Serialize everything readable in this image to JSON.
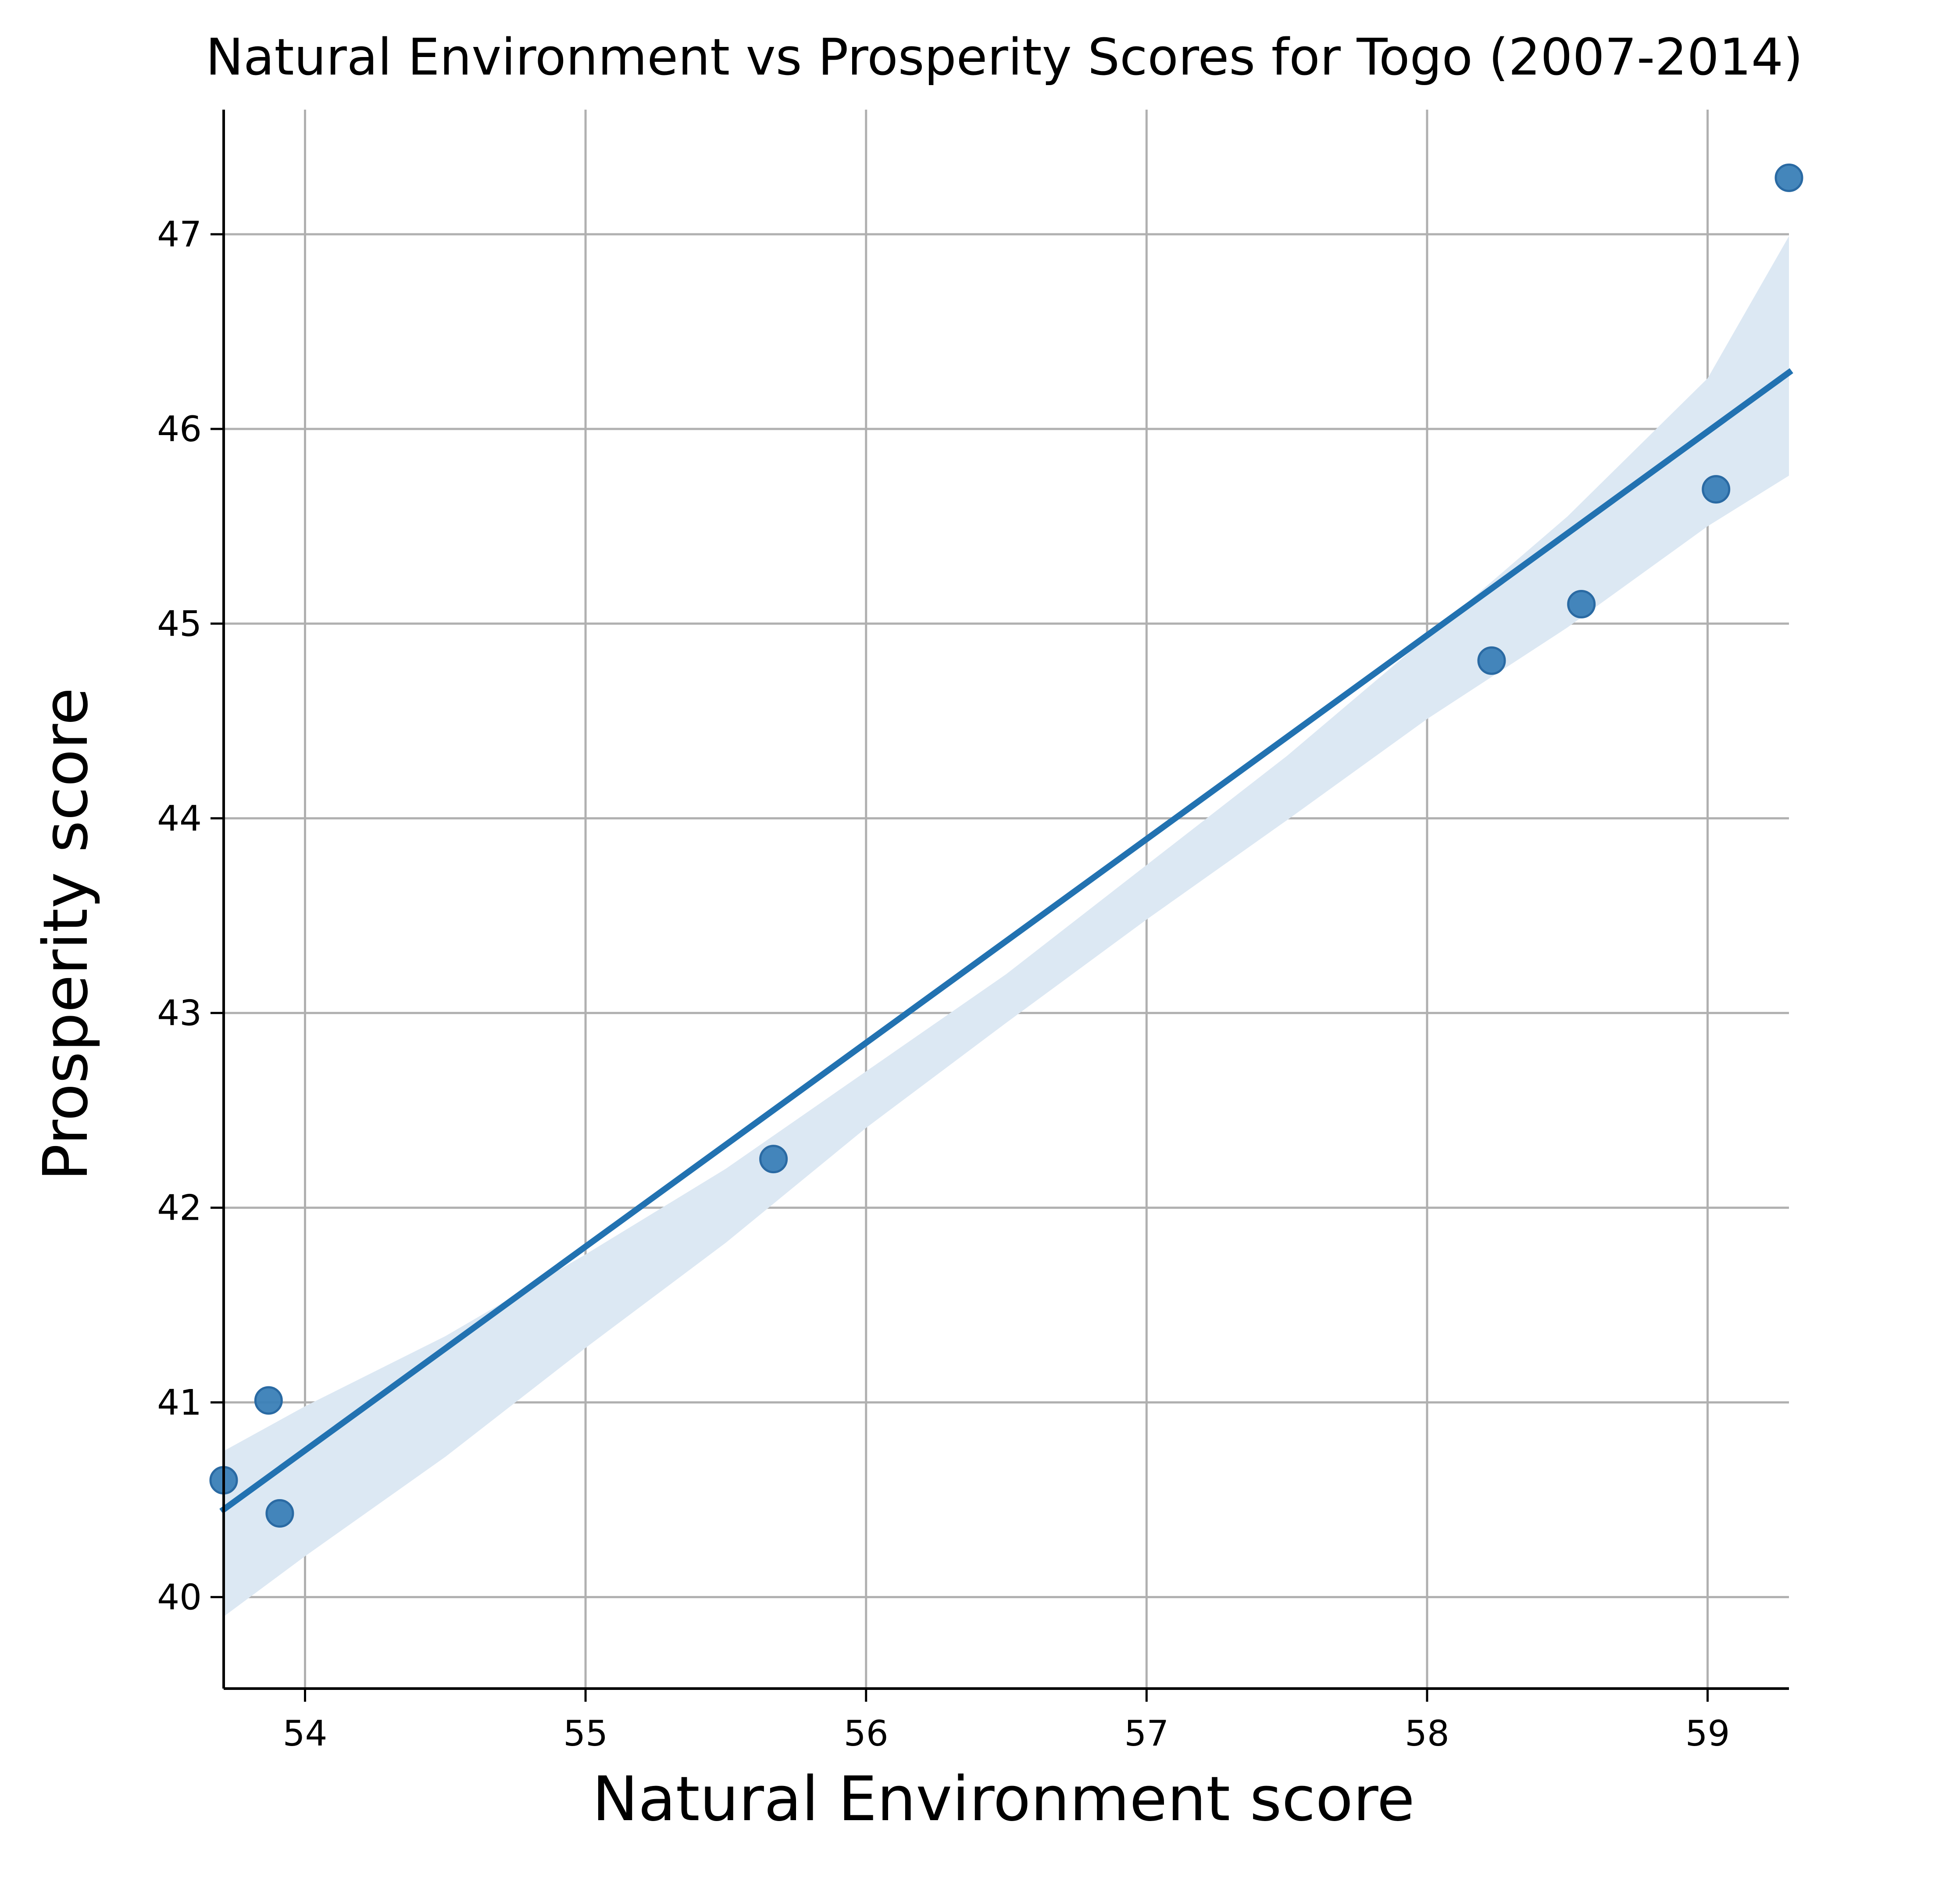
{
  "chart_data": {
    "type": "scatter",
    "title": "Natural Environment vs Prosperity Scores for Togo (2007-2014)",
    "xlabel": "Natural Environment score",
    "ylabel": "Prosperity score",
    "xlim": [
      53.71,
      59.29
    ],
    "ylim": [
      39.53,
      47.64
    ],
    "x_ticks": [
      54,
      55,
      56,
      57,
      58,
      59
    ],
    "y_ticks": [
      40,
      41,
      42,
      43,
      44,
      45,
      46,
      47
    ],
    "grid": true,
    "series": [
      {
        "points": [
          {
            "x": 53.71,
            "y": 40.6
          },
          {
            "x": 53.87,
            "y": 41.01
          },
          {
            "x": 53.91,
            "y": 40.43
          },
          {
            "x": 55.67,
            "y": 42.25
          },
          {
            "x": 58.23,
            "y": 44.81
          },
          {
            "x": 58.55,
            "y": 45.1
          },
          {
            "x": 59.03,
            "y": 45.69
          },
          {
            "x": 59.29,
            "y": 47.29
          }
        ]
      }
    ],
    "regression": {
      "start": {
        "x": 53.71,
        "y": 40.45
      },
      "end": {
        "x": 59.29,
        "y": 46.29
      },
      "ci_upper": [
        {
          "x": 53.71,
          "y": 40.75
        },
        {
          "x": 54.0,
          "y": 40.98
        },
        {
          "x": 54.5,
          "y": 41.34
        },
        {
          "x": 55.0,
          "y": 41.76
        },
        {
          "x": 55.5,
          "y": 42.2
        },
        {
          "x": 56.0,
          "y": 42.7
        },
        {
          "x": 56.5,
          "y": 43.2
        },
        {
          "x": 57.0,
          "y": 43.76
        },
        {
          "x": 57.5,
          "y": 44.32
        },
        {
          "x": 58.0,
          "y": 44.93
        },
        {
          "x": 58.5,
          "y": 45.55
        },
        {
          "x": 59.0,
          "y": 46.26
        },
        {
          "x": 59.29,
          "y": 46.99
        }
      ],
      "ci_lower": [
        {
          "x": 53.71,
          "y": 39.9
        },
        {
          "x": 54.0,
          "y": 40.21
        },
        {
          "x": 54.5,
          "y": 40.72
        },
        {
          "x": 55.0,
          "y": 41.28
        },
        {
          "x": 55.5,
          "y": 41.82
        },
        {
          "x": 56.0,
          "y": 42.41
        },
        {
          "x": 56.5,
          "y": 42.95
        },
        {
          "x": 57.0,
          "y": 43.48
        },
        {
          "x": 57.5,
          "y": 43.99
        },
        {
          "x": 58.0,
          "y": 44.51
        },
        {
          "x": 58.5,
          "y": 44.98
        },
        {
          "x": 59.0,
          "y": 45.5
        },
        {
          "x": 59.29,
          "y": 45.76
        }
      ]
    },
    "colors": {
      "point": "#3a7fb7",
      "point_edge": "#2a6aa3",
      "line": "#2272b1",
      "ci_band": "#dce8f3",
      "grid": "#b0b0b0",
      "axis": "#000000"
    }
  }
}
